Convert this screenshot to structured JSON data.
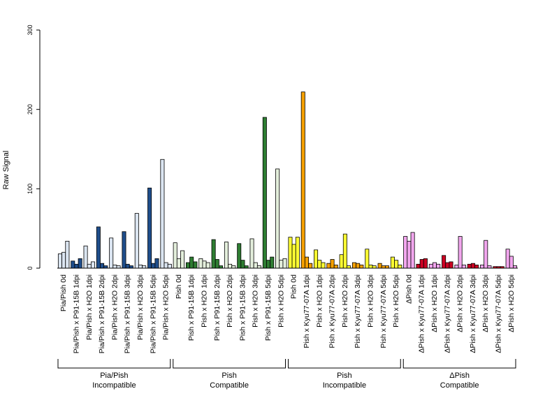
{
  "chart_data": {
    "type": "bar",
    "title": "",
    "xlabel": "",
    "ylabel": "Raw Signal",
    "ylim": [
      0,
      300
    ],
    "yticks": [
      0,
      100,
      200,
      300
    ],
    "grid": false,
    "bars_per_category": 3,
    "categories": [
      "Pia/Pish 0d",
      "Pia/Pish x P91-15B 1dpi",
      "Pia/Pish x H2O 1dpi",
      "Pia/Pish x P91-15B 2dpi",
      "Pia/Pish x H2O 2dpi",
      "Pia/Pish x P91-15B 3dpi",
      "Pia/Pish x H2O 3dpi",
      "Pia/Pish x P91-15B 5dpi",
      "Pia/Pish x H2O 5dpi",
      "Pish 0d",
      "Pish x P91-15B 1dpi",
      "Pish x H2O 1dpi",
      "Pish x P91-15B 2dpi",
      "Pish x H2O 2dpi",
      "Pish x P91-15B 3dpi",
      "Pish x H2O 3dpi",
      "Pish x P91-15B 5dpi",
      "Pish x H2O 5dpi",
      "Pish 0d",
      "Pish x Kyu77-07A 1dpi",
      "Pish x H2O 1dpi",
      "Pish x Kyu77-07A 2dpi",
      "Pish x H2O 2dpi",
      "Pish x Kyu77-07A 3dpi",
      "Pish x H2O 3dpi",
      "Pish x Kyu77-07A 5dpi",
      "Pish x H2O 5dpi",
      "ΔPish 0d",
      "ΔPish x Kyu77-07A 1dpi",
      "ΔPish x H2O 1dpi",
      "ΔPish x Kyu77-07A 2dpi",
      "ΔPish x H2O 2dpi",
      "ΔPish x Kyu77-07A 3dpi",
      "ΔPish x H2O 3dpi",
      "ΔPish x Kyu77-07A 5dpi",
      "ΔPish x H2O 5dpi"
    ],
    "values": [
      [
        18,
        20,
        34
      ],
      [
        9,
        5,
        12
      ],
      [
        28,
        5,
        8
      ],
      [
        52,
        6,
        3
      ],
      [
        38,
        4,
        3
      ],
      [
        46,
        5,
        3
      ],
      [
        69,
        4,
        3
      ],
      [
        101,
        6,
        12
      ],
      [
        137,
        7,
        5
      ],
      [
        32,
        12,
        22
      ],
      [
        7,
        14,
        8
      ],
      [
        12,
        9,
        7
      ],
      [
        36,
        11,
        3
      ],
      [
        33,
        5,
        3
      ],
      [
        31,
        10,
        3
      ],
      [
        37,
        7,
        3
      ],
      [
        190,
        10,
        14
      ],
      [
        125,
        10,
        12
      ],
      [
        39,
        30,
        39
      ],
      [
        222,
        14,
        6
      ],
      [
        23,
        10,
        7
      ],
      [
        6,
        11,
        4
      ],
      [
        17,
        43,
        3
      ],
      [
        7,
        6,
        4
      ],
      [
        24,
        4,
        3
      ],
      [
        6,
        3,
        3
      ],
      [
        14,
        10,
        4
      ],
      [
        40,
        34,
        45
      ],
      [
        5,
        11,
        12
      ],
      [
        5,
        7,
        5
      ],
      [
        16,
        7,
        8
      ],
      [
        4,
        40,
        4
      ],
      [
        5,
        6,
        4
      ],
      [
        4,
        35,
        3
      ],
      [
        2,
        2,
        2
      ],
      [
        24,
        15,
        3
      ]
    ],
    "category_colors": [
      "#dbe5f1",
      "#1f4e8c",
      "#dbe5f1",
      "#1f4e8c",
      "#dbe5f1",
      "#1f4e8c",
      "#dbe5f1",
      "#1f4e8c",
      "#dbe5f1",
      "#e4efdc",
      "#2e7d32",
      "#e4efdc",
      "#2e7d32",
      "#e4efdc",
      "#2e7d32",
      "#e4efdc",
      "#2e7d32",
      "#e4efdc",
      "#ffff33",
      "#f5a000",
      "#ffff33",
      "#f5a000",
      "#ffff33",
      "#f5a000",
      "#ffff33",
      "#f5a000",
      "#ffff33",
      "#f2a6ee",
      "#cc0022",
      "#f2a6ee",
      "#cc0022",
      "#f2a6ee",
      "#cc0022",
      "#f2a6ee",
      "#cc0022",
      "#f2a6ee"
    ],
    "groups": [
      {
        "line1": "Pia/Pish",
        "line2": "Incompatible",
        "start": 0,
        "end": 8
      },
      {
        "line1": "Pish",
        "line2": "Compatible",
        "start": 9,
        "end": 17
      },
      {
        "line1": "Pish",
        "line2": "Incompatible",
        "start": 18,
        "end": 26
      },
      {
        "line1": "ΔPish",
        "line2": "Compatible",
        "start": 27,
        "end": 35
      }
    ]
  }
}
